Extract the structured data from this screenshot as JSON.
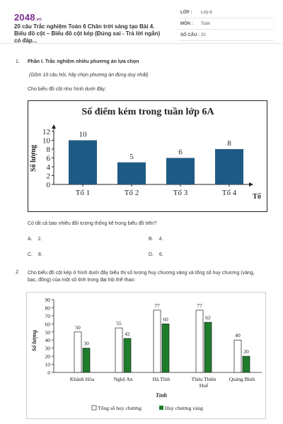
{
  "header": {
    "logo_main": "2048",
    "logo_tld": ".vn",
    "doc_title": "20 câu Trắc nghiệm Toán 6 Chân trời sáng tạo Bài 4. Biểu đồ cột – Biểu đồ cột kép (Đúng sai - Trả lời ngắn) có đáp...",
    "meta": [
      {
        "key": "LỚP :",
        "value": "Lớp 6"
      },
      {
        "key": "MÔN :",
        "value": "Toán"
      },
      {
        "key": "SỐ CÂU :",
        "value": "20"
      }
    ]
  },
  "q1": {
    "number": "1.",
    "section": "Phần I. Trắc nghiệm nhiều phương án lựa chọn",
    "note": "(Gồm 10 câu hỏi, hãy chọn phương án đúng duy nhất)",
    "intro": "Cho biểu đồ cột như hình dưới đây:",
    "question": "Có tất cả bao nhiêu đối tượng thống kê trong biểu đồ trên?",
    "options": [
      {
        "label": "A.",
        "text": "2."
      },
      {
        "label": "B.",
        "text": "4."
      },
      {
        "label": "C.",
        "text": "8."
      },
      {
        "label": "D.",
        "text": "6."
      }
    ]
  },
  "q2": {
    "number": "2.",
    "text": "Cho biểu đồ cột kép ở hình dưới đây biểu thị số lượng huy chương vàng và tổng số huy chương (vàng, bạc, đồng) của một số tỉnh trong đại hội thể thao:"
  },
  "chart_data": [
    {
      "type": "bar",
      "title": "Số điểm kém trong tuần lớp 6A",
      "xlabel": "Tổ",
      "ylabel": "Số lượng",
      "categories": [
        "Tổ 1",
        "Tổ 2",
        "Tổ 3",
        "Tổ 4"
      ],
      "values": [
        10,
        5,
        6,
        8
      ],
      "ylim": [
        0,
        12
      ],
      "yticks": [
        0,
        2,
        4,
        6,
        8,
        10,
        12
      ],
      "color": "#1f5a84",
      "grid": false
    },
    {
      "type": "bar",
      "title": "",
      "xlabel": "Tỉnh",
      "ylabel": "Số lượng",
      "categories": [
        "Khánh Hòa",
        "Nghệ An",
        "Hà Tĩnh",
        "Thừa Thiên Huế",
        "Quảng Bình"
      ],
      "series": [
        {
          "name": "Tổng số huy chương",
          "values": [
            50,
            55,
            77,
            77,
            40
          ],
          "color": "#ffffff"
        },
        {
          "name": "Huy chương vàng",
          "values": [
            30,
            42,
            60,
            62,
            20
          ],
          "color": "#1e7d2b"
        }
      ],
      "ylim": [
        0,
        90
      ],
      "yticks": [
        0,
        10,
        20,
        30,
        40,
        50,
        60,
        70,
        80,
        90
      ],
      "legend": "bottom",
      "grid": false
    }
  ]
}
